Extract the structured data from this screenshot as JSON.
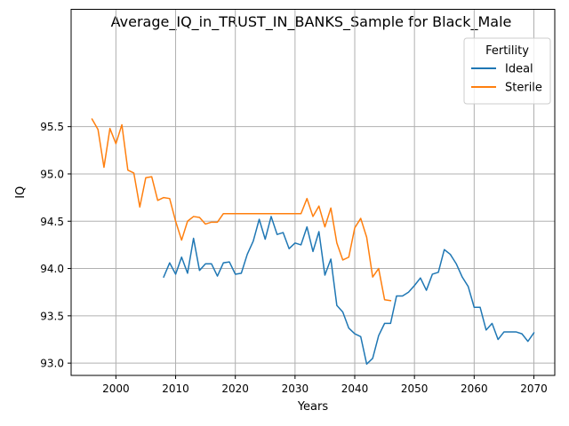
{
  "chart_data": {
    "type": "line",
    "title": "Average_IQ_in_TRUST_IN_BANKS_Sample for Black_Male",
    "xlabel": "Years",
    "ylabel": "IQ",
    "xlim": [
      1992.5,
      2073.5
    ],
    "ylim": [
      92.87,
      96.74
    ],
    "x_ticks": [
      2000,
      2010,
      2020,
      2030,
      2040,
      2050,
      2060,
      2070
    ],
    "x_tick_labels": [
      "2000",
      "2010",
      "2020",
      "2030",
      "2040",
      "2050",
      "2060",
      "2070"
    ],
    "y_ticks": [
      93.0,
      93.5,
      94.0,
      94.5,
      95.0,
      95.5
    ],
    "y_tick_labels": [
      "93.0",
      "93.5",
      "94.0",
      "94.5",
      "95.0",
      "95.5"
    ],
    "grid": true,
    "legend": {
      "title": "Fertility",
      "position": "top-right"
    },
    "series": [
      {
        "name": "Ideal",
        "color": "#1f77b4",
        "x": [
          2008,
          2009,
          2010,
          2011,
          2012,
          2013,
          2014,
          2015,
          2016,
          2017,
          2018,
          2019,
          2020,
          2021,
          2022,
          2023,
          2024,
          2025,
          2026,
          2027,
          2028,
          2029,
          2030,
          2031,
          2032,
          2033,
          2034,
          2035,
          2036,
          2037,
          2038,
          2039,
          2040,
          2041,
          2042,
          2043,
          2044,
          2045,
          2046,
          2047,
          2048,
          2049,
          2050,
          2051,
          2052,
          2053,
          2054,
          2055,
          2056,
          2057,
          2058,
          2059,
          2060,
          2061,
          2062,
          2063,
          2064,
          2065,
          2066,
          2067,
          2068,
          2069,
          2070
        ],
        "values": [
          93.91,
          94.06,
          93.94,
          94.12,
          93.95,
          94.32,
          93.98,
          94.05,
          94.05,
          93.92,
          94.06,
          94.07,
          93.94,
          93.95,
          94.15,
          94.29,
          94.52,
          94.31,
          94.55,
          94.36,
          94.38,
          94.21,
          94.27,
          94.25,
          94.44,
          94.18,
          94.39,
          93.93,
          94.1,
          93.61,
          93.54,
          93.37,
          93.31,
          93.28,
          92.99,
          93.05,
          93.29,
          93.42,
          93.42,
          93.71,
          93.71,
          93.75,
          93.82,
          93.9,
          93.77,
          93.94,
          93.96,
          94.2,
          94.15,
          94.05,
          93.91,
          93.81,
          93.59,
          93.59,
          93.35,
          93.42,
          93.25,
          93.33,
          93.33,
          93.33,
          93.31,
          93.23,
          93.32
        ]
      },
      {
        "name": "Sterile",
        "color": "#ff7f0e",
        "x": [
          1996,
          1997,
          1998,
          1999,
          2000,
          2001,
          2002,
          2003,
          2004,
          2005,
          2006,
          2007,
          2008,
          2009,
          2010,
          2011,
          2012,
          2013,
          2014,
          2015,
          2016,
          2017,
          2018,
          2019,
          2020,
          2021,
          2022,
          2023,
          2024,
          2025,
          2026,
          2027,
          2028,
          2029,
          2030,
          2031,
          2032,
          2033,
          2034,
          2035,
          2036,
          2037,
          2038,
          2039,
          2040,
          2041,
          2042,
          2043,
          2044,
          2045,
          2046
        ],
        "values": [
          95.58,
          95.47,
          95.07,
          95.48,
          95.32,
          95.52,
          95.04,
          95.01,
          94.65,
          94.96,
          94.97,
          94.72,
          94.75,
          94.74,
          94.5,
          94.3,
          94.5,
          94.55,
          94.54,
          94.47,
          94.49,
          94.49,
          94.58,
          94.58,
          94.58,
          94.58,
          94.58,
          94.58,
          94.58,
          94.58,
          94.58,
          94.58,
          94.58,
          94.58,
          94.58,
          94.58,
          94.74,
          94.55,
          94.66,
          94.44,
          94.64,
          94.27,
          94.09,
          94.12,
          94.43,
          94.53,
          94.33,
          93.91,
          94.0,
          93.67,
          93.66
        ]
      }
    ]
  }
}
